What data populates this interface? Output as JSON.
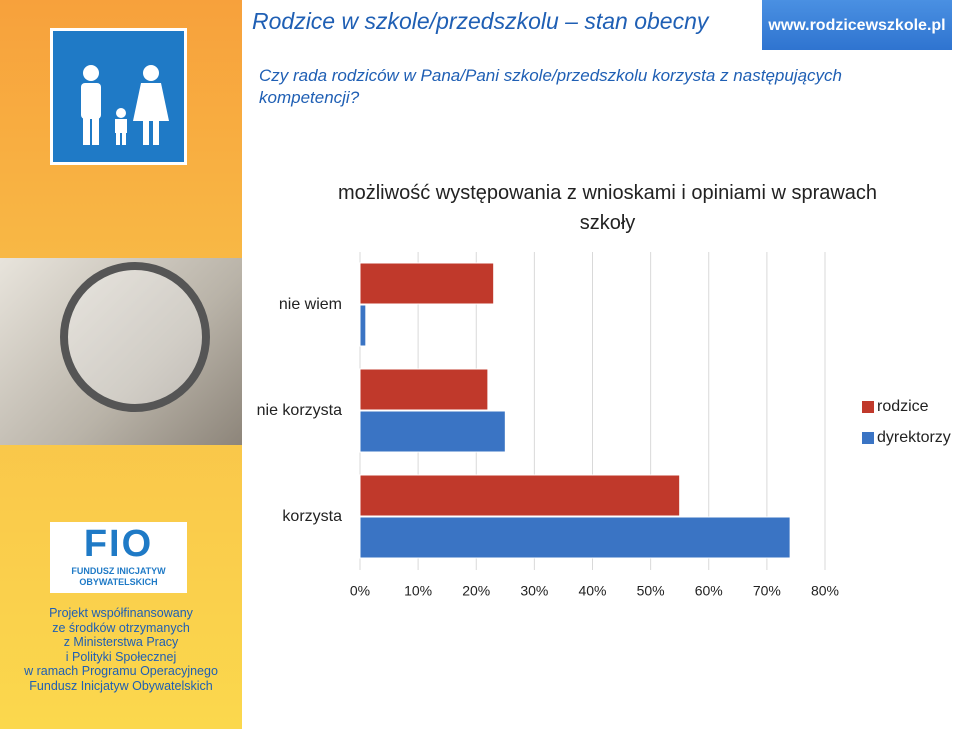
{
  "header": {
    "title": "Rodzice w szkole/przedszkolu – stan obecny",
    "website": "www.rodzicewszkole.pl",
    "question": "Czy rada rodziców w Pana/Pani szkole/przedszkolu korzysta z następujących kompetencji?"
  },
  "sidebar": {
    "logo_title": "FIO",
    "logo_subtitle": "FUNDUSZ INICJATYW OBYWATELSKICH",
    "footer": [
      "Projekt współfinansowany",
      "ze środków otrzymanych",
      "z Ministerstwa Pracy",
      "i Polityki Społecznej",
      "w ramach Programu Operacyjnego",
      "Fundusz Inicjatyw Obywatelskich"
    ]
  },
  "chart_data": {
    "type": "hbar",
    "title": "możliwość występowania z wnioskami i opiniami w sprawach szkoły",
    "categories": [
      "nie wiem",
      "nie korzysta",
      "korzysta"
    ],
    "series": [
      {
        "name": "rodzice",
        "color": "#c0392b",
        "values": [
          23,
          22,
          55
        ]
      },
      {
        "name": "dyrektorzy",
        "color": "#3a74c4",
        "values": [
          1,
          25,
          74
        ]
      }
    ],
    "xlim": [
      0,
      80
    ],
    "xticks": [
      {
        "value": 0,
        "label": "0%"
      },
      {
        "value": 10,
        "label": "10%"
      },
      {
        "value": 20,
        "label": "20%"
      },
      {
        "value": 30,
        "label": "30%"
      },
      {
        "value": 40,
        "label": "40%"
      },
      {
        "value": 50,
        "label": "50%"
      },
      {
        "value": 60,
        "label": "60%"
      },
      {
        "value": 70,
        "label": "70%"
      },
      {
        "value": 80,
        "label": "80%"
      }
    ],
    "grid": true,
    "legend": "right"
  }
}
